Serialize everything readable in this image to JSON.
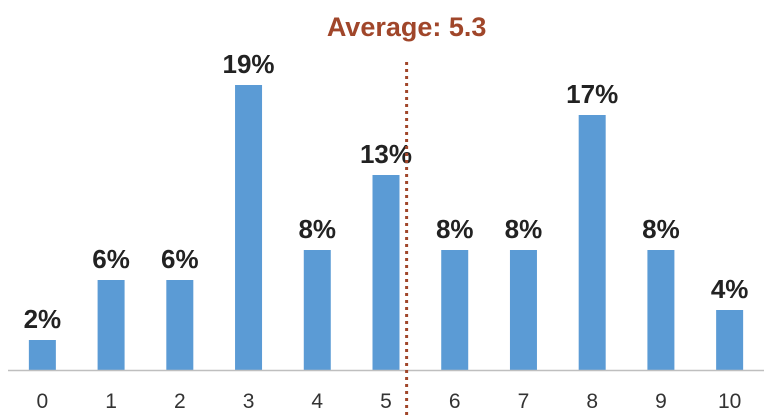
{
  "chart_data": {
    "type": "bar",
    "categories": [
      "0",
      "1",
      "2",
      "3",
      "4",
      "5",
      "6",
      "7",
      "8",
      "9",
      "10"
    ],
    "values": [
      2,
      6,
      6,
      19,
      8,
      13,
      8,
      8,
      17,
      8,
      4
    ],
    "data_labels": [
      "2%",
      "6%",
      "6%",
      "19%",
      "8%",
      "13%",
      "8%",
      "8%",
      "17%",
      "8%",
      "4%"
    ],
    "title": "",
    "xlabel": "",
    "ylabel": "",
    "ylim": [
      0,
      20
    ],
    "grid": false,
    "legend": "none",
    "bar_color": "#5b9bd5",
    "annotation": {
      "label": "Average: 5.3",
      "x_value": 5.3,
      "color": "#a0462a",
      "style": "dotted-vertical-line"
    }
  }
}
